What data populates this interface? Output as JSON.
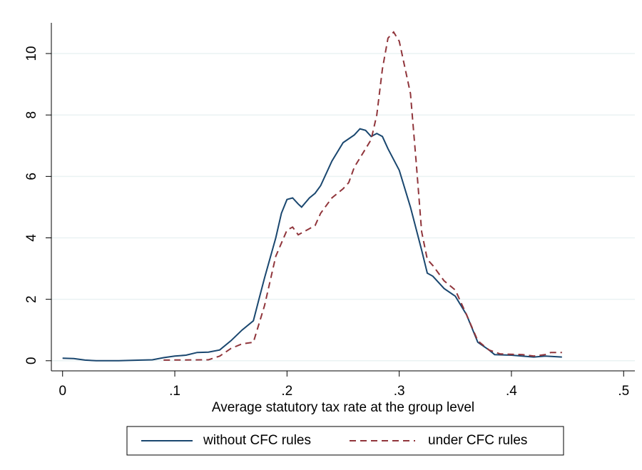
{
  "chart_data": {
    "type": "line",
    "x_label": "Average statutory tax rate at the group level",
    "xlim": [
      -0.01,
      0.51
    ],
    "ylim": [
      -0.33,
      11.0
    ],
    "xticks": [
      0,
      {
        "value": 0.1,
        "label": ".1"
      },
      {
        "value": 0.2,
        "label": ".2"
      },
      {
        "value": 0.3,
        "label": ".3"
      },
      {
        "value": 0.4,
        "label": ".4"
      },
      {
        "value": 0.5,
        "label": ".5"
      }
    ],
    "yticks": [
      0,
      2,
      4,
      6,
      8,
      10
    ],
    "grid": true,
    "legend": "bottom",
    "series": [
      {
        "name": "without CFC rules",
        "color": "#1a476f",
        "dash": false,
        "x": [
          0,
          0.01,
          0.02,
          0.03,
          0.05,
          0.07,
          0.08,
          0.09,
          0.1,
          0.11,
          0.12,
          0.13,
          0.14,
          0.15,
          0.16,
          0.17,
          0.175,
          0.18,
          0.19,
          0.195,
          0.2,
          0.205,
          0.21,
          0.213,
          0.22,
          0.225,
          0.23,
          0.24,
          0.25,
          0.26,
          0.265,
          0.27,
          0.275,
          0.28,
          0.285,
          0.29,
          0.3,
          0.31,
          0.32,
          0.325,
          0.33,
          0.34,
          0.35,
          0.36,
          0.37,
          0.38,
          0.385,
          0.4,
          0.42,
          0.43,
          0.445
        ],
        "values": [
          0.08,
          0.07,
          0.02,
          0,
          0,
          0.02,
          0.03,
          0.1,
          0.15,
          0.18,
          0.27,
          0.28,
          0.35,
          0.65,
          1.0,
          1.3,
          2.0,
          2.7,
          4.0,
          4.8,
          5.25,
          5.3,
          5.1,
          5.0,
          5.3,
          5.45,
          5.7,
          6.5,
          7.1,
          7.35,
          7.55,
          7.5,
          7.3,
          7.4,
          7.3,
          6.9,
          6.2,
          5.0,
          3.6,
          2.85,
          2.75,
          2.35,
          2.1,
          1.5,
          0.6,
          0.35,
          0.2,
          0.18,
          0.12,
          0.15,
          0.12
        ]
      },
      {
        "name": "under CFC rules",
        "color": "#90353b",
        "dash": true,
        "x": [
          0.09,
          0.13,
          0.14,
          0.15,
          0.16,
          0.17,
          0.18,
          0.19,
          0.2,
          0.205,
          0.21,
          0.22,
          0.225,
          0.23,
          0.24,
          0.25,
          0.255,
          0.26,
          0.27,
          0.275,
          0.28,
          0.285,
          0.29,
          0.295,
          0.3,
          0.31,
          0.315,
          0.32,
          0.325,
          0.33,
          0.34,
          0.35,
          0.36,
          0.37,
          0.38,
          0.39,
          0.41,
          0.42,
          0.43,
          0.435,
          0.445
        ],
        "values": [
          0.02,
          0.03,
          0.15,
          0.4,
          0.55,
          0.6,
          1.8,
          3.4,
          4.25,
          4.35,
          4.1,
          4.3,
          4.4,
          4.8,
          5.3,
          5.6,
          5.8,
          6.3,
          6.9,
          7.2,
          8.0,
          9.5,
          10.5,
          10.7,
          10.4,
          8.7,
          6.5,
          4.2,
          3.3,
          3.1,
          2.6,
          2.3,
          1.5,
          0.65,
          0.35,
          0.22,
          0.2,
          0.15,
          0.2,
          0.27,
          0.27
        ]
      }
    ]
  }
}
